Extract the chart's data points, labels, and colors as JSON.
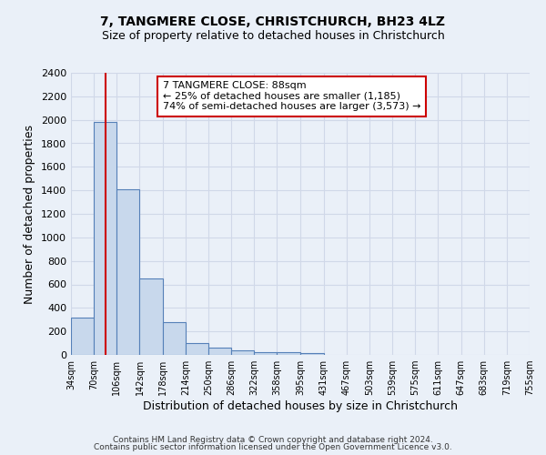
{
  "title1": "7, TANGMERE CLOSE, CHRISTCHURCH, BH23 4LZ",
  "title2": "Size of property relative to detached houses in Christchurch",
  "xlabel": "Distribution of detached houses by size in Christchurch",
  "ylabel": "Number of detached properties",
  "bin_edges": [
    34,
    70,
    106,
    142,
    178,
    214,
    250,
    286,
    322,
    358,
    395,
    431,
    467,
    503,
    539,
    575,
    611,
    647,
    683,
    719,
    755
  ],
  "bar_heights": [
    320,
    1980,
    1410,
    650,
    275,
    100,
    65,
    40,
    25,
    20,
    15,
    0,
    0,
    0,
    0,
    0,
    0,
    0,
    0,
    0
  ],
  "bar_color": "#c8d8ec",
  "bar_edge_color": "#5580b8",
  "property_size": 88,
  "vline_color": "#cc0000",
  "ylim": [
    0,
    2400
  ],
  "yticks": [
    0,
    200,
    400,
    600,
    800,
    1000,
    1200,
    1400,
    1600,
    1800,
    2000,
    2200,
    2400
  ],
  "annotation_line1": "7 TANGMERE CLOSE: 88sqm",
  "annotation_line2": "← 25% of detached houses are smaller (1,185)",
  "annotation_line3": "74% of semi-detached houses are larger (3,573) →",
  "annotation_box_color": "#ffffff",
  "annotation_box_edge": "#cc0000",
  "footer1": "Contains HM Land Registry data © Crown copyright and database right 2024.",
  "footer2": "Contains public sector information licensed under the Open Government Licence v3.0.",
  "bg_color": "#eaf0f8",
  "grid_color": "#d0d8e8"
}
